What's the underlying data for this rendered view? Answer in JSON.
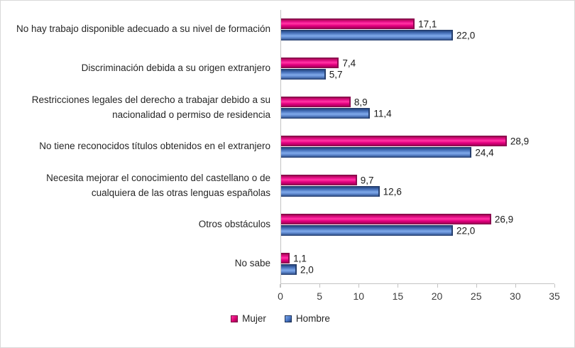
{
  "chart_data": {
    "type": "bar",
    "orientation": "horizontal",
    "title": "",
    "categories": [
      "No hay trabajo disponible adecuado a su nivel de formación",
      "Discriminación debida a su origen extranjero",
      "Restricciones legales del derecho a trabajar debido a su nacionalidad o permiso de residencia",
      "No tiene reconocidos títulos obtenidos en el extranjero",
      "Necesita mejorar el conocimiento del castellano o de cualquiera de las otras lenguas españolas",
      "Otros obstáculos",
      "No sabe"
    ],
    "series": [
      {
        "name": "Mujer",
        "color": "#E0077E",
        "values": [
          17.1,
          7.4,
          8.9,
          28.9,
          9.7,
          26.9,
          1.1
        ],
        "value_labels": [
          "17,1",
          "7,4",
          "8,9",
          "28,9",
          "9,7",
          "26,9",
          "1,1"
        ]
      },
      {
        "name": "Hombre",
        "color": "#4472C4",
        "values": [
          22.0,
          5.7,
          11.4,
          24.4,
          12.6,
          22.0,
          2.0
        ],
        "value_labels": [
          "22,0",
          "5,7",
          "11,4",
          "24,4",
          "12,6",
          "22,0",
          "2,0"
        ]
      }
    ],
    "xlim": [
      0,
      35
    ],
    "x_ticks": [
      "0",
      "5",
      "10",
      "15",
      "20",
      "25",
      "30",
      "35"
    ],
    "grid": false,
    "legend_position": "bottom"
  },
  "colors": {
    "mujer_main": "#E0077E",
    "mujer_dark": "#8E0A52",
    "mujer_light": "#FF37A4",
    "hombre_main": "#4472C4",
    "hombre_dark": "#27406F",
    "hombre_light": "#7FA9E8",
    "axis_line": "#C3C3C3",
    "frame_border": "#D9D9D9",
    "text": "#262626"
  }
}
